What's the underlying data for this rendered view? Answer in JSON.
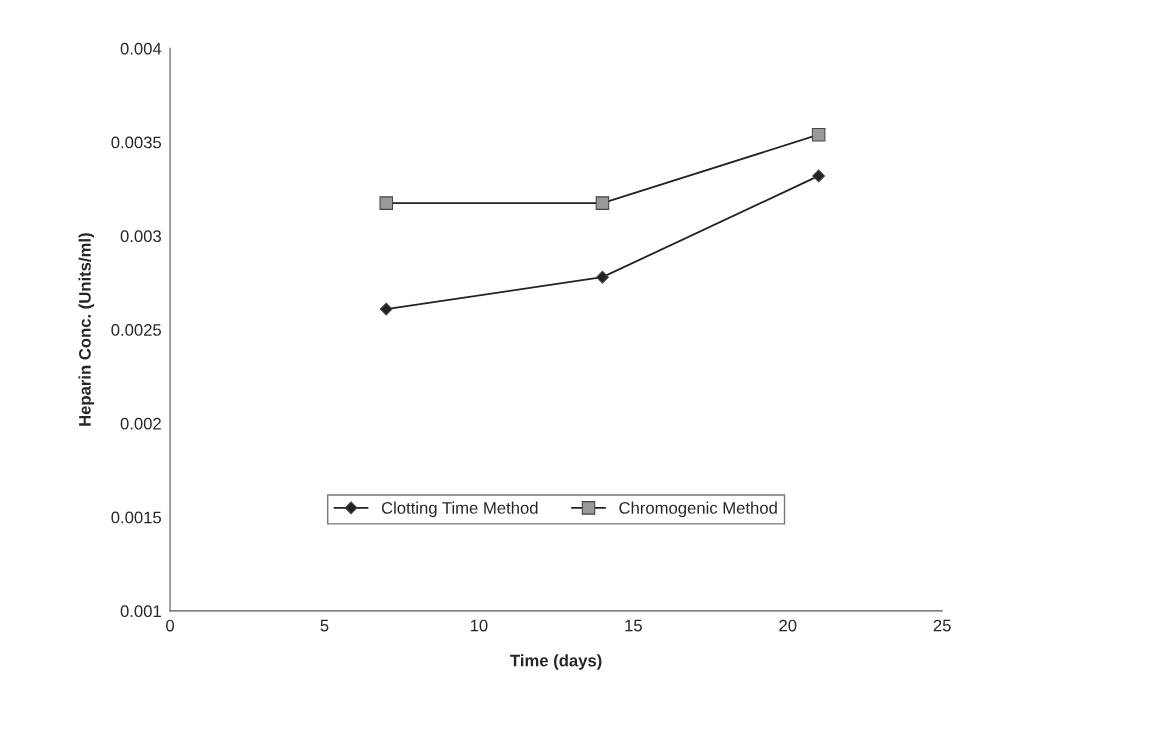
{
  "chart_data": {
    "type": "line",
    "xlabel": "Time (days)",
    "ylabel": "Heparin Conc. (Units/ml)",
    "x": [
      7,
      14,
      21
    ],
    "series": [
      {
        "name": "Clotting Time Method",
        "color": "#222222",
        "values": [
          0.00261,
          0.00278,
          0.00332
        ],
        "marker": "diamond"
      },
      {
        "name": "Chromogenic Method",
        "color": "#222222",
        "values": [
          0.003175,
          0.003175,
          0.00354
        ],
        "marker": "square"
      }
    ],
    "xlim": [
      0,
      25
    ],
    "xticks": [
      0,
      5,
      10,
      15,
      20,
      25
    ],
    "ylim": [
      0.001,
      0.004
    ],
    "yticks": [
      {
        "value": 0.001,
        "label": "0.001"
      },
      {
        "value": 0.0015,
        "label": "0.0015"
      },
      {
        "value": 0.002,
        "label": "0.002"
      },
      {
        "value": 0.0025,
        "label": "0.0025"
      },
      {
        "value": 0.003,
        "label": "0.003"
      },
      {
        "value": 0.0035,
        "label": "0.0035"
      },
      {
        "value": 0.004,
        "label": "0.004"
      }
    ],
    "grid": false,
    "legend": "lower center",
    "line_style": "solid"
  }
}
